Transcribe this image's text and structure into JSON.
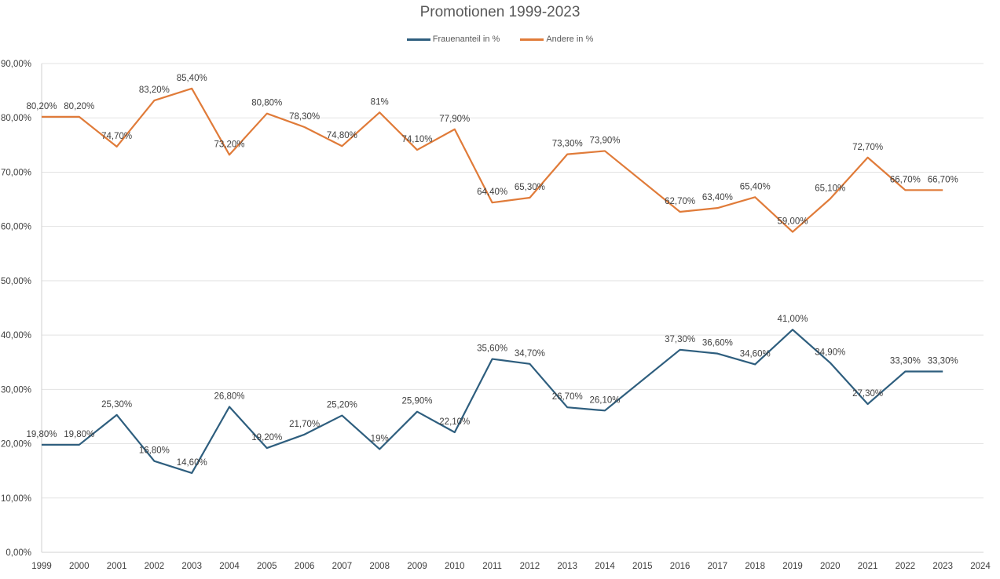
{
  "chart_data": {
    "type": "line",
    "title": "Promotionen 1999-2023",
    "xlabel": "",
    "ylabel": "",
    "categories": [
      "1999",
      "2000",
      "2001",
      "2002",
      "2003",
      "2004",
      "2005",
      "2006",
      "2007",
      "2008",
      "2009",
      "2010",
      "2011",
      "2012",
      "2013",
      "2014",
      "2015",
      "2016",
      "2017",
      "2018",
      "2019",
      "2020",
      "2021",
      "2022",
      "2023",
      "2024"
    ],
    "ylim": [
      0,
      90
    ],
    "yticks": [
      0,
      10,
      20,
      30,
      40,
      50,
      60,
      70,
      80,
      90
    ],
    "ytick_labels": [
      "0,00%",
      "10,00%",
      "20,00%",
      "30,00%",
      "40,00%",
      "50,00%",
      "60,00%",
      "70,00%",
      "80,00%",
      "90,00%"
    ],
    "grid": true,
    "legend_position": "top-center",
    "series": [
      {
        "name": "Frauenanteil in %",
        "color": "#2E5E7E",
        "values": [
          19.8,
          19.8,
          25.3,
          16.8,
          14.6,
          26.8,
          19.2,
          21.7,
          25.2,
          19,
          25.9,
          22.1,
          35.6,
          34.7,
          26.7,
          26.1,
          null,
          37.3,
          36.6,
          34.6,
          41.0,
          34.9,
          27.3,
          33.3,
          33.3,
          null
        ],
        "labels": [
          "19,80%",
          "19,80%",
          "25,30%",
          "16,80%",
          "14,60%",
          "26,80%",
          "19,20%",
          "21,70%",
          "25,20%",
          "19%",
          "25,90%",
          "22,10%",
          "35,60%",
          "34,70%",
          "26,70%",
          "26,10%",
          null,
          "37,30%",
          "36,60%",
          "34,60%",
          "41,00%",
          "34,90%",
          "27,30%",
          "33,30%",
          "33,30%",
          null
        ]
      },
      {
        "name": "Andere in %",
        "color": "#E07B39",
        "values": [
          80.2,
          80.2,
          74.7,
          83.2,
          85.4,
          73.2,
          80.8,
          78.3,
          74.8,
          81,
          74.1,
          77.9,
          64.4,
          65.3,
          73.3,
          73.9,
          null,
          62.7,
          63.4,
          65.4,
          59.0,
          65.1,
          72.7,
          66.7,
          66.7,
          null
        ],
        "labels": [
          "80,20%",
          "80,20%",
          "74,70%",
          "83,20%",
          "85,40%",
          "73,20%",
          "80,80%",
          "78,30%",
          "74,80%",
          "81%",
          "74,10%",
          "77,90%",
          "64,40%",
          "65,30%",
          "73,30%",
          "73,90%",
          null,
          "62,70%",
          "63,40%",
          "65,40%",
          "59,00%",
          "65,10%",
          "72,70%",
          "66,70%",
          "66,70%",
          null
        ]
      }
    ]
  }
}
